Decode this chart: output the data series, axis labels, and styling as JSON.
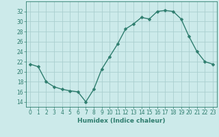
{
  "x": [
    0,
    1,
    2,
    3,
    4,
    5,
    6,
    7,
    8,
    9,
    10,
    11,
    12,
    13,
    14,
    15,
    16,
    17,
    18,
    19,
    20,
    21,
    22,
    23
  ],
  "y": [
    21.5,
    21.0,
    18.0,
    17.0,
    16.5,
    16.2,
    16.0,
    14.0,
    16.5,
    20.5,
    23.0,
    25.5,
    28.5,
    29.5,
    30.8,
    30.5,
    32.0,
    32.2,
    32.0,
    30.5,
    27.0,
    24.0,
    22.0,
    21.5
  ],
  "line_color": "#2e7d6e",
  "marker": "D",
  "marker_size": 2.5,
  "bg_color": "#cceaea",
  "grid_color": "#aacfcf",
  "xlabel": "Humidex (Indice chaleur)",
  "ylim": [
    13,
    34
  ],
  "xlim": [
    -0.5,
    23.5
  ],
  "yticks": [
    14,
    16,
    18,
    20,
    22,
    24,
    26,
    28,
    30,
    32
  ],
  "xticks": [
    0,
    1,
    2,
    3,
    4,
    5,
    6,
    7,
    8,
    9,
    10,
    11,
    12,
    13,
    14,
    15,
    16,
    17,
    18,
    19,
    20,
    21,
    22,
    23
  ],
  "xtick_labels": [
    "0",
    "1",
    "2",
    "3",
    "4",
    "5",
    "6",
    "7",
    "8",
    "9",
    "10",
    "11",
    "12",
    "13",
    "14",
    "15",
    "16",
    "17",
    "18",
    "19",
    "20",
    "21",
    "22",
    "23"
  ],
  "linewidth": 1.0,
  "xlabel_fontsize": 6.5,
  "tick_fontsize": 5.5
}
